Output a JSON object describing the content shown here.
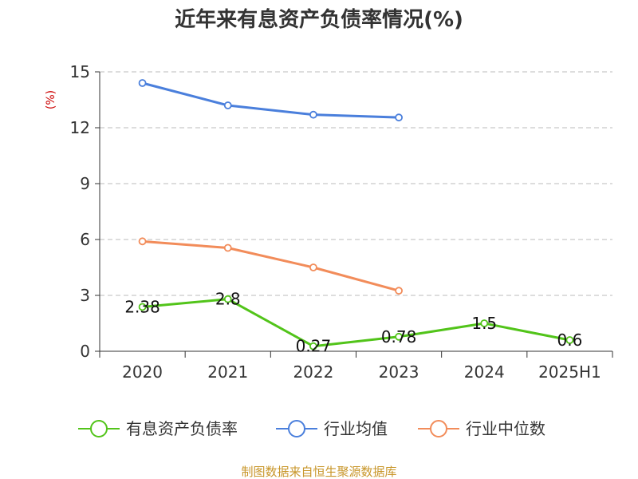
{
  "chart_data": {
    "type": "line",
    "title": "近年来有息资产负债率情况(%)",
    "ylabel": "(%)",
    "xlabel": "",
    "categories": [
      "2020",
      "2021",
      "2022",
      "2023",
      "2024",
      "2025H1"
    ],
    "ylim": [
      0,
      15
    ],
    "yticks": [
      0,
      3,
      6,
      9,
      12,
      15
    ],
    "grid": true,
    "legend_position": "bottom",
    "series": [
      {
        "name": "有息资产负债率",
        "color": "#52c41a",
        "values": [
          2.38,
          2.8,
          0.27,
          0.78,
          1.5,
          0.6
        ],
        "labels": [
          "2.38",
          "2.8",
          "0.27",
          "0.78",
          "1.5",
          "0.6"
        ]
      },
      {
        "name": "行业均值",
        "color": "#4a7fdc",
        "values": [
          14.4,
          13.2,
          12.7,
          12.55,
          null,
          null
        ]
      },
      {
        "name": "行业中位数",
        "color": "#f28c5a",
        "values": [
          5.9,
          5.55,
          4.5,
          3.25,
          null,
          null
        ]
      }
    ]
  },
  "source_text": "制图数据来自恒生聚源数据库"
}
